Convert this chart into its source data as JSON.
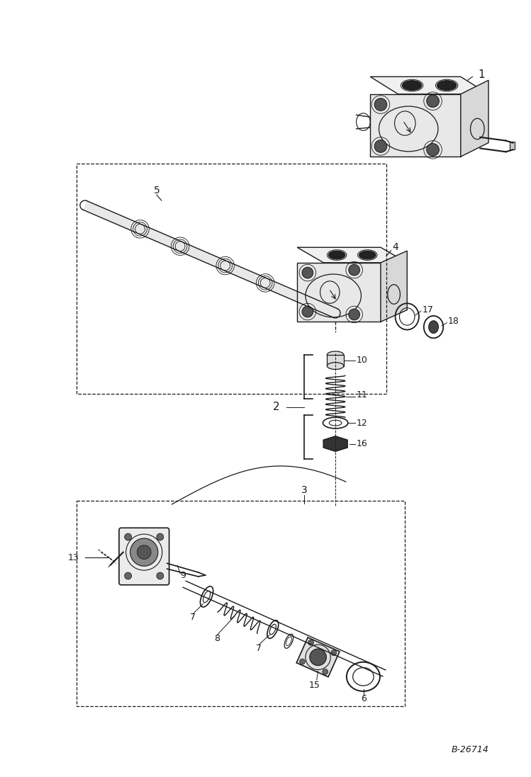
{
  "bg_color": "#ffffff",
  "line_color": "#1a1a1a",
  "fig_width": 7.49,
  "fig_height": 10.97,
  "dpi": 100,
  "watermark": "B-26714"
}
